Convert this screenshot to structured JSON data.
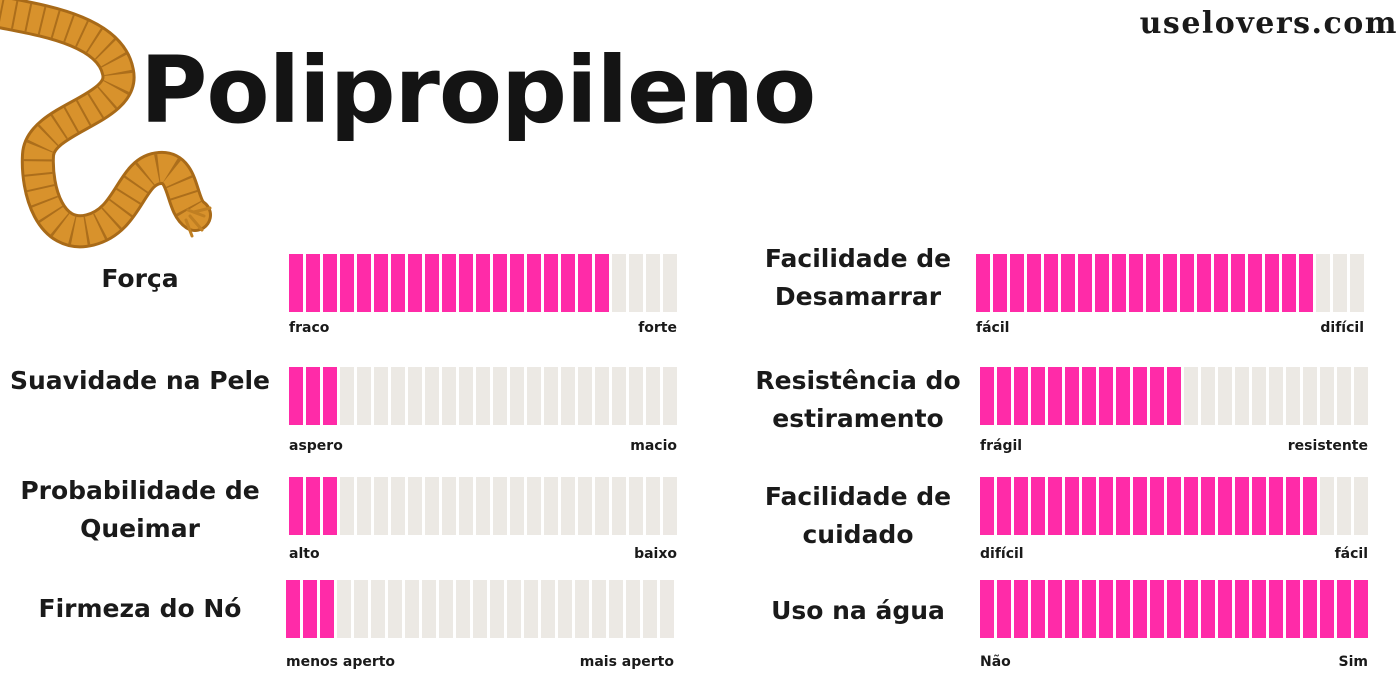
{
  "brand": "uselovers.com",
  "title": "Polipropileno",
  "colors": {
    "filled": "#ff2ba8",
    "empty": "#ece9e4",
    "rope": "#d8922c"
  },
  "segments_per_bar": 23,
  "ratings": [
    {
      "label": "Força",
      "min": "fraco",
      "max": "forte",
      "filled": 19
    },
    {
      "label": "Suavidade na Pele",
      "min": "aspero",
      "max": "macio",
      "filled": 3
    },
    {
      "label": "Probabilidade de Queimar",
      "min": "alto",
      "max": "baixo",
      "filled": 3
    },
    {
      "label": "Firmeza do Nó",
      "min": "menos aperto",
      "max": "mais aperto",
      "filled": 3
    },
    {
      "label": "Facilidade de Desamarrar",
      "min": "fácil",
      "max": "difícil",
      "filled": 20
    },
    {
      "label": "Resistência do estiramento",
      "min": "frágil",
      "max": "resistente",
      "filled": 12
    },
    {
      "label": "Facilidade de cuidado",
      "min": "difícil",
      "max": "fácil",
      "filled": 20
    },
    {
      "label": "Uso na água",
      "min": "Não",
      "max": "Sim",
      "filled": 23
    }
  ]
}
